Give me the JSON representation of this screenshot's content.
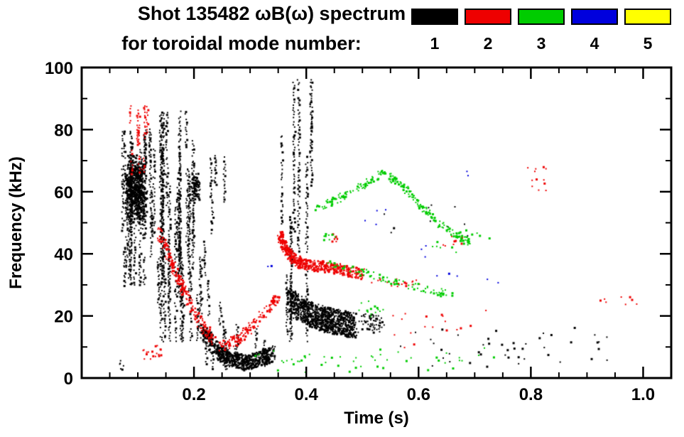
{
  "background": "#ffffff",
  "title_line1": "Shot 135482 ωB(ω) spectrum",
  "title_line2": "for toroidal mode number:",
  "legend": {
    "modes": [
      {
        "label": "1",
        "color": "#000000"
      },
      {
        "label": "2",
        "color": "#ee0000"
      },
      {
        "label": "3",
        "color": "#00cc00"
      },
      {
        "label": "4",
        "color": "#0000dd"
      },
      {
        "label": "5",
        "color": "#ffff00"
      }
    ]
  },
  "chart_data": {
    "type": "scatter",
    "title": "Shot 135482 ωB(ω) spectrum for toroidal mode number: 1-5",
    "xlabel": "Time (s)",
    "ylabel": "Frequency (kHz)",
    "xlim": [
      0.0,
      1.05
    ],
    "ylim": [
      0,
      100
    ],
    "x_major_ticks": [
      0.2,
      0.4,
      0.6,
      0.8,
      1.0
    ],
    "x_minor_step": 0.05,
    "y_major_ticks": [
      0,
      20,
      40,
      60,
      80,
      100
    ],
    "y_minor_step": 10,
    "grid": false,
    "legend_position": "top-right",
    "series": [
      {
        "name": "n=1",
        "color": "#000000",
        "clusters": [
          {
            "type": "blob",
            "t": [
              0.075,
              0.118
            ],
            "f": [
              48,
              73
            ],
            "n": 700
          },
          {
            "type": "vstreaks",
            "t": [
              0.068,
              0.13
            ],
            "f": [
              30,
              80
            ],
            "streaks": 24,
            "seg": [
              8,
              35
            ]
          },
          {
            "type": "vstreaks",
            "t": [
              0.13,
              0.21
            ],
            "f": [
              12,
              86
            ],
            "streaks": 26,
            "seg": [
              10,
              60
            ]
          },
          {
            "type": "blob",
            "t": [
              0.196,
              0.212
            ],
            "f": [
              57,
              66
            ],
            "n": 80
          },
          {
            "type": "vstreaks",
            "t": [
              0.21,
              0.26
            ],
            "f": [
              20,
              72
            ],
            "streaks": 8,
            "seg": [
              8,
              28
            ]
          },
          {
            "type": "trace",
            "pts": [
              [
                0.215,
                15
              ],
              [
                0.24,
                9
              ],
              [
                0.265,
                6
              ],
              [
                0.29,
                5
              ],
              [
                0.315,
                6
              ],
              [
                0.34,
                8
              ]
            ],
            "n": 700,
            "jitter": [
              0.006,
              2.5
            ]
          },
          {
            "type": "vstreaks",
            "t": [
              0.22,
              0.33
            ],
            "f": [
              3,
              26
            ],
            "streaks": 10,
            "seg": [
              5,
              18
            ]
          },
          {
            "type": "vstreaks",
            "t": [
              0.352,
              0.41
            ],
            "f": [
              12,
              96
            ],
            "streaks": 9,
            "seg": [
              18,
              75
            ]
          },
          {
            "type": "trace",
            "pts": [
              [
                0.37,
                25
              ],
              [
                0.4,
                21
              ],
              [
                0.43,
                19
              ],
              [
                0.455,
                18
              ],
              [
                0.485,
                17
              ]
            ],
            "n": 900,
            "jitter": [
              0.008,
              4
            ]
          },
          {
            "type": "blob",
            "t": [
              0.49,
              0.55
            ],
            "f": [
              14,
              22
            ],
            "n": 60
          },
          {
            "type": "blob",
            "t": [
              0.52,
              0.72
            ],
            "f": [
              42,
              60
            ],
            "n": 10
          },
          {
            "type": "blob",
            "t": [
              0.5,
              1.02
            ],
            "f": [
              2,
              18
            ],
            "n": 45
          },
          {
            "type": "blob",
            "t": [
              0.06,
              0.08
            ],
            "f": [
              2,
              6
            ],
            "n": 6
          }
        ]
      },
      {
        "name": "n=2",
        "color": "#ee0000",
        "clusters": [
          {
            "type": "vstreaks",
            "t": [
              0.082,
              0.118
            ],
            "f": [
              66,
              88
            ],
            "streaks": 9,
            "seg": [
              5,
              16
            ]
          },
          {
            "type": "blob",
            "t": [
              0.1,
              0.15
            ],
            "f": [
              6,
              11
            ],
            "n": 18
          },
          {
            "type": "trace",
            "pts": [
              [
                0.138,
                47
              ],
              [
                0.16,
                37
              ],
              [
                0.185,
                27
              ],
              [
                0.21,
                18
              ],
              [
                0.235,
                12
              ]
            ],
            "n": 220,
            "jitter": [
              0.004,
              2
            ]
          },
          {
            "type": "trace",
            "pts": [
              [
                0.245,
                10
              ],
              [
                0.275,
                12
              ],
              [
                0.305,
                17
              ],
              [
                0.335,
                23
              ],
              [
                0.35,
                26
              ]
            ],
            "n": 160,
            "jitter": [
              0.004,
              1.8
            ]
          },
          {
            "type": "trace",
            "pts": [
              [
                0.353,
                46
              ],
              [
                0.365,
                41
              ],
              [
                0.378,
                38
              ],
              [
                0.4,
                36.5
              ],
              [
                0.43,
                36
              ],
              [
                0.46,
                35
              ],
              [
                0.5,
                33.5
              ]
            ],
            "n": 500,
            "jitter": [
              0.005,
              1.8
            ]
          },
          {
            "type": "blob",
            "t": [
              0.44,
              0.47
            ],
            "f": [
              43,
              47
            ],
            "n": 10
          },
          {
            "type": "blob",
            "t": [
              0.5,
              0.62
            ],
            "f": [
              28,
              33
            ],
            "n": 20
          },
          {
            "type": "blob",
            "t": [
              0.55,
              0.75
            ],
            "f": [
              8,
              25
            ],
            "n": 18
          },
          {
            "type": "blob",
            "t": [
              0.78,
              0.84
            ],
            "f": [
              56,
              71
            ],
            "n": 12
          },
          {
            "type": "blob",
            "t": [
              0.9,
              1.02
            ],
            "f": [
              22,
              30
            ],
            "n": 8
          },
          {
            "type": "blob",
            "t": [
              0.63,
              0.7
            ],
            "f": [
              40,
              46
            ],
            "n": 8
          }
        ]
      },
      {
        "name": "n=3",
        "color": "#00cc00",
        "clusters": [
          {
            "type": "trace",
            "pts": [
              [
                0.415,
                54
              ],
              [
                0.46,
                58
              ],
              [
                0.5,
                62
              ],
              [
                0.535,
                66
              ],
              [
                0.565,
                63
              ],
              [
                0.6,
                56
              ],
              [
                0.635,
                50
              ],
              [
                0.665,
                46
              ],
              [
                0.69,
                44
              ]
            ],
            "n": 240,
            "jitter": [
              0.004,
              1.2
            ]
          },
          {
            "type": "trace",
            "pts": [
              [
                0.44,
                37
              ],
              [
                0.5,
                34
              ],
              [
                0.56,
                31
              ],
              [
                0.62,
                28
              ],
              [
                0.665,
                27
              ]
            ],
            "n": 90,
            "jitter": [
              0.005,
              1.2
            ]
          },
          {
            "type": "blob",
            "t": [
              0.25,
              0.78
            ],
            "f": [
              1,
              10
            ],
            "n": 40
          },
          {
            "type": "blob",
            "t": [
              0.6,
              0.73
            ],
            "f": [
              38,
              50
            ],
            "n": 16
          },
          {
            "type": "blob",
            "t": [
              0.47,
              0.56
            ],
            "f": [
              19,
              26
            ],
            "n": 14
          },
          {
            "type": "blob",
            "t": [
              0.42,
              0.46
            ],
            "f": [
              43,
              48
            ],
            "n": 8
          },
          {
            "type": "blob",
            "t": [
              0.35,
              0.42
            ],
            "f": [
              2,
              9
            ],
            "n": 10
          }
        ]
      },
      {
        "name": "n=4",
        "color": "#0000dd",
        "clusters": [
          {
            "type": "blob",
            "t": [
              0.5,
              0.56
            ],
            "f": [
              48,
              55
            ],
            "n": 4
          },
          {
            "type": "blob",
            "t": [
              0.57,
              0.64
            ],
            "f": [
              38,
              44
            ],
            "n": 3
          },
          {
            "type": "blob",
            "t": [
              0.62,
              0.68
            ],
            "f": [
              30,
              36
            ],
            "n": 3
          },
          {
            "type": "blob",
            "t": [
              0.66,
              0.7
            ],
            "f": [
              64,
              69
            ],
            "n": 2
          },
          {
            "type": "blob",
            "t": [
              0.33,
              0.35
            ],
            "f": [
              33,
              37
            ],
            "n": 2
          },
          {
            "type": "blob",
            "t": [
              0.72,
              0.76
            ],
            "f": [
              30,
              34
            ],
            "n": 2
          }
        ]
      },
      {
        "name": "n=5",
        "color": "#ffff00",
        "clusters": []
      }
    ]
  }
}
